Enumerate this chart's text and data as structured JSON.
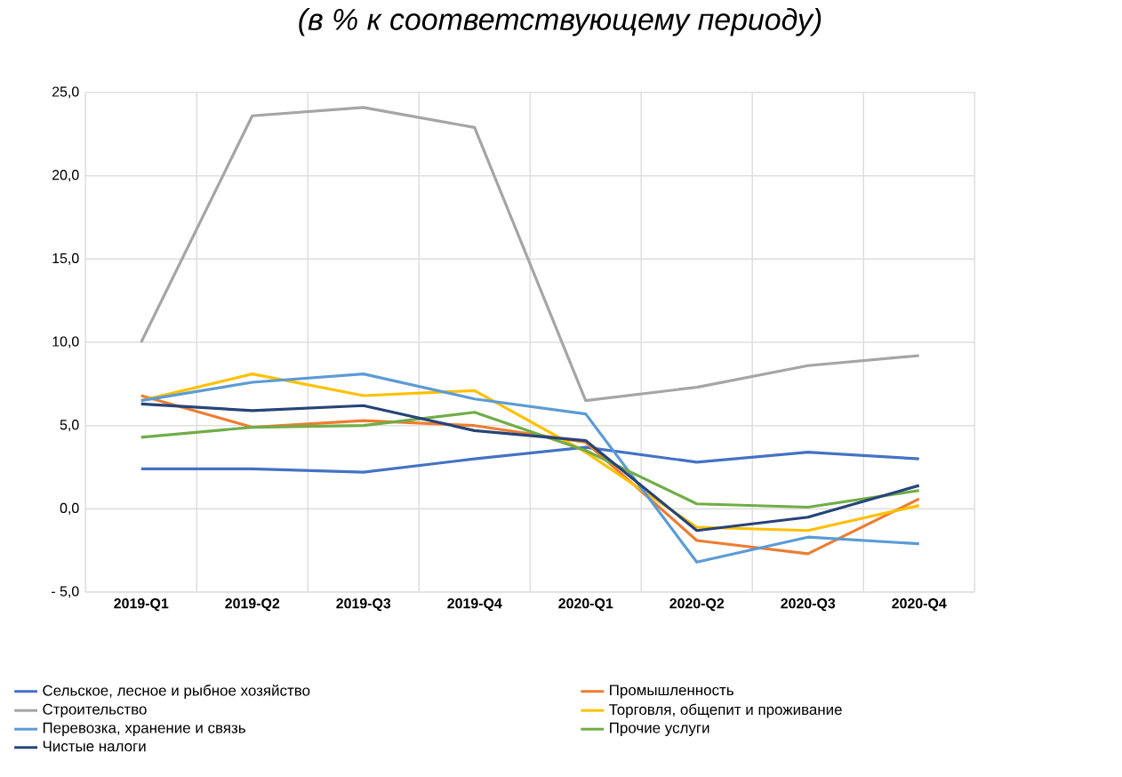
{
  "chart_data": {
    "type": "line",
    "title": "(в % к соответствующему периоду)",
    "categories": [
      "2019-Q1",
      "2019-Q2",
      "2019-Q3",
      "2019-Q4",
      "2020-Q1",
      "2020-Q2",
      "2020-Q3",
      "2020-Q4"
    ],
    "ylim": [
      -5,
      25
    ],
    "yticks": [
      {
        "value": -5,
        "label": "- 5,0"
      },
      {
        "value": 0,
        "label": "0,0"
      },
      {
        "value": 5,
        "label": "5,0"
      },
      {
        "value": 10,
        "label": "10,0"
      },
      {
        "value": 15,
        "label": "15,0"
      },
      {
        "value": 20,
        "label": "20,0"
      },
      {
        "value": 25,
        "label": "25,0"
      }
    ],
    "grid": true,
    "legend": "bottom",
    "marker": "none",
    "line_style": "solid",
    "series": [
      {
        "name": "Сельское, лесное и рыбное хозяйство",
        "color": "#4472c4",
        "values": [
          2.4,
          2.4,
          2.2,
          3.0,
          3.7,
          2.8,
          3.4,
          3.0
        ]
      },
      {
        "name": "Промышленность",
        "color": "#ed7d31",
        "values": [
          6.8,
          4.9,
          5.3,
          5.0,
          4.0,
          -1.9,
          -2.7,
          0.6
        ]
      },
      {
        "name": "Строительство",
        "color": "#a5a5a5",
        "values": [
          10.0,
          23.6,
          24.1,
          22.9,
          6.5,
          7.3,
          8.6,
          9.2
        ]
      },
      {
        "name": "Торговля, общепит и проживание",
        "color": "#ffc000",
        "values": [
          6.5,
          8.1,
          6.8,
          7.1,
          3.4,
          -1.1,
          -1.3,
          0.2
        ]
      },
      {
        "name": "Перевозка, хранение и связь",
        "color": "#5b9bd5",
        "values": [
          6.5,
          7.6,
          8.1,
          6.6,
          5.7,
          -3.2,
          -1.7,
          -2.1
        ]
      },
      {
        "name": "Прочие услуги",
        "color": "#70ad47",
        "values": [
          4.3,
          4.9,
          5.0,
          5.8,
          3.5,
          0.3,
          0.1,
          1.1
        ]
      },
      {
        "name": "Чистые налоги",
        "color": "#264478",
        "values": [
          6.3,
          5.9,
          6.2,
          4.7,
          4.1,
          -1.3,
          -0.5,
          1.4
        ]
      }
    ]
  }
}
